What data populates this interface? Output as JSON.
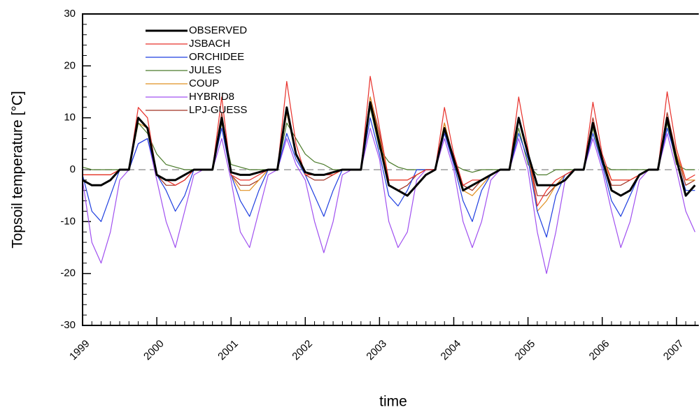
{
  "chart_data": {
    "type": "line",
    "y_label": "Topsoil temperature [°C]",
    "x_label": "time",
    "xlim": [
      1999,
      2007.3
    ],
    "xticks": [
      1999,
      2000,
      2001,
      2002,
      2003,
      2004,
      2005,
      2006,
      2007
    ],
    "ylim": [
      -30,
      30
    ],
    "yticks": [
      -30,
      -20,
      -10,
      0,
      10,
      20,
      30
    ],
    "legend": "upper left",
    "x": [
      1999,
      1999.125,
      1999.25,
      1999.375,
      1999.5,
      1999.625,
      1999.75,
      1999.875,
      2000,
      2000.125,
      2000.25,
      2000.375,
      2000.5,
      2000.625,
      2000.75,
      2000.875,
      2001,
      2001.125,
      2001.25,
      2001.375,
      2001.5,
      2001.625,
      2001.75,
      2001.875,
      2002,
      2002.125,
      2002.25,
      2002.375,
      2002.5,
      2002.625,
      2002.75,
      2002.875,
      2003,
      2003.125,
      2003.25,
      2003.375,
      2003.5,
      2003.625,
      2003.75,
      2003.875,
      2004,
      2004.125,
      2004.25,
      2004.375,
      2004.5,
      2004.625,
      2004.75,
      2004.875,
      2005,
      2005.125,
      2005.25,
      2005.375,
      2005.5,
      2005.625,
      2005.75,
      2005.875,
      2006,
      2006.125,
      2006.25,
      2006.375,
      2006.5,
      2006.625,
      2006.75,
      2006.875,
      2007,
      2007.125,
      2007.25
    ],
    "series": [
      {
        "name": "OBSERVED",
        "color": "#000000",
        "values": [
          -2,
          -3,
          -3,
          -2,
          0,
          0,
          10,
          8,
          -1,
          -2,
          -2,
          -1,
          0,
          0,
          0,
          10,
          -0.5,
          -1,
          -1,
          -0.5,
          0,
          0,
          12,
          3,
          -0.5,
          -1,
          -1,
          -0.5,
          0,
          0,
          0,
          13,
          5,
          -3,
          -4,
          -5,
          -3,
          -1,
          0,
          8,
          2,
          -4,
          -3,
          -2,
          -1,
          0,
          0,
          10,
          3,
          -3,
          -3,
          -3,
          -2,
          0,
          0,
          9,
          2,
          -4,
          -5,
          -4,
          -1,
          0,
          0,
          10,
          2,
          -5,
          -3
        ]
      },
      {
        "name": "JSBACH",
        "color": "#e8302a",
        "values": [
          -1,
          -1,
          -1,
          -1,
          0,
          0,
          12,
          10,
          -1,
          -2,
          -3,
          -2,
          0,
          0,
          0,
          14,
          -1,
          -2,
          -2,
          -1,
          0,
          0,
          17,
          5,
          -1,
          -1,
          -1,
          -1,
          0,
          0,
          0,
          18,
          8,
          -2,
          -2,
          -2,
          -1,
          0,
          0,
          12,
          3,
          -3,
          -2,
          -2,
          -1,
          0,
          0,
          14,
          4,
          -7,
          -4,
          -2,
          -1,
          0,
          0,
          13,
          3,
          -2,
          -2,
          -2,
          -1,
          0,
          0,
          15,
          4,
          -2,
          -1
        ]
      },
      {
        "name": "ORCHIDEE",
        "color": "#1f3fe0",
        "values": [
          -1,
          -8,
          -10,
          -5,
          0,
          0,
          5,
          6,
          -1,
          -4,
          -8,
          -5,
          0,
          0,
          0,
          8,
          -1,
          -6,
          -9,
          -4,
          0,
          0,
          7,
          2,
          -1,
          -5,
          -9,
          -4,
          0,
          0,
          0,
          10,
          3,
          -5,
          -7,
          -4,
          0,
          0,
          0,
          7,
          1,
          -6,
          -10,
          -4,
          -1,
          0,
          0,
          7,
          2,
          -8,
          -13,
          -5,
          -1,
          0,
          0,
          7,
          1,
          -6,
          -9,
          -5,
          -1,
          0,
          0,
          8,
          2,
          -4,
          -4
        ]
      },
      {
        "name": "JULES",
        "color": "#4a7a2a",
        "values": [
          0.5,
          0,
          0,
          0,
          0,
          0,
          9,
          7,
          3,
          1,
          0.5,
          0,
          0,
          0,
          0,
          9,
          1,
          0.5,
          0,
          0,
          0,
          0,
          9,
          6,
          3,
          1.5,
          1,
          0,
          0,
          0,
          0,
          12,
          4,
          1.5,
          0.5,
          0,
          0,
          0,
          0,
          8,
          1,
          0,
          -0.5,
          0,
          0,
          0,
          0,
          8,
          1,
          -1,
          -1,
          0,
          0,
          0,
          0,
          8,
          1,
          0,
          0,
          0,
          0,
          0,
          0,
          9,
          1,
          0,
          0
        ]
      },
      {
        "name": "COUP",
        "color": "#e09020",
        "values": [
          -1,
          -1,
          -1,
          -1,
          0,
          0,
          9,
          8,
          -1,
          -2,
          -2,
          -1,
          0,
          0,
          0,
          10,
          -1,
          -4,
          -4,
          -2,
          0,
          0,
          11,
          3,
          -1,
          -1,
          -1,
          -1,
          0,
          0,
          0,
          14,
          6,
          -2,
          -2,
          -2,
          -1,
          0,
          0,
          9,
          2,
          -4,
          -5,
          -3,
          -1,
          0,
          0,
          10,
          3,
          -8,
          -6,
          -3,
          -1,
          0,
          0,
          9,
          2,
          -2,
          -2,
          -2,
          -1,
          0,
          0,
          10,
          3,
          -2,
          -2
        ]
      },
      {
        "name": "HYBRID8",
        "color": "#a050f0",
        "values": [
          -2,
          -14,
          -18,
          -12,
          -2,
          0,
          5,
          6,
          -2,
          -10,
          -15,
          -8,
          -1,
          0,
          0,
          6,
          -2,
          -12,
          -15,
          -8,
          -1,
          0,
          6,
          1,
          -2,
          -10,
          -16,
          -10,
          -1,
          0,
          0,
          8,
          2,
          -10,
          -15,
          -12,
          -2,
          0,
          0,
          6,
          0,
          -10,
          -15,
          -10,
          -2,
          0,
          0,
          6,
          0,
          -12,
          -20,
          -12,
          -2,
          0,
          0,
          6,
          0,
          -8,
          -15,
          -10,
          -2,
          0,
          0,
          7,
          0,
          -8,
          -12
        ]
      },
      {
        "name": "LPJ-GUESS",
        "color": "#a03020",
        "values": [
          -1,
          -1,
          -1,
          -1,
          0,
          0,
          10,
          8,
          -1,
          -3,
          -3,
          -2,
          0,
          0,
          0,
          11,
          -1,
          -3,
          -3,
          -2,
          0,
          0,
          11,
          3,
          -1,
          -2,
          -2,
          -1,
          0,
          0,
          0,
          14,
          7,
          -3,
          -4,
          -3,
          -1,
          0,
          0,
          9,
          2,
          -3,
          -4,
          -2,
          -1,
          0,
          0,
          10,
          3,
          -5,
          -5,
          -3,
          -1,
          0,
          0,
          10,
          2,
          -3,
          -3,
          -2,
          -1,
          0,
          0,
          11,
          3,
          -3,
          -2
        ]
      }
    ]
  }
}
